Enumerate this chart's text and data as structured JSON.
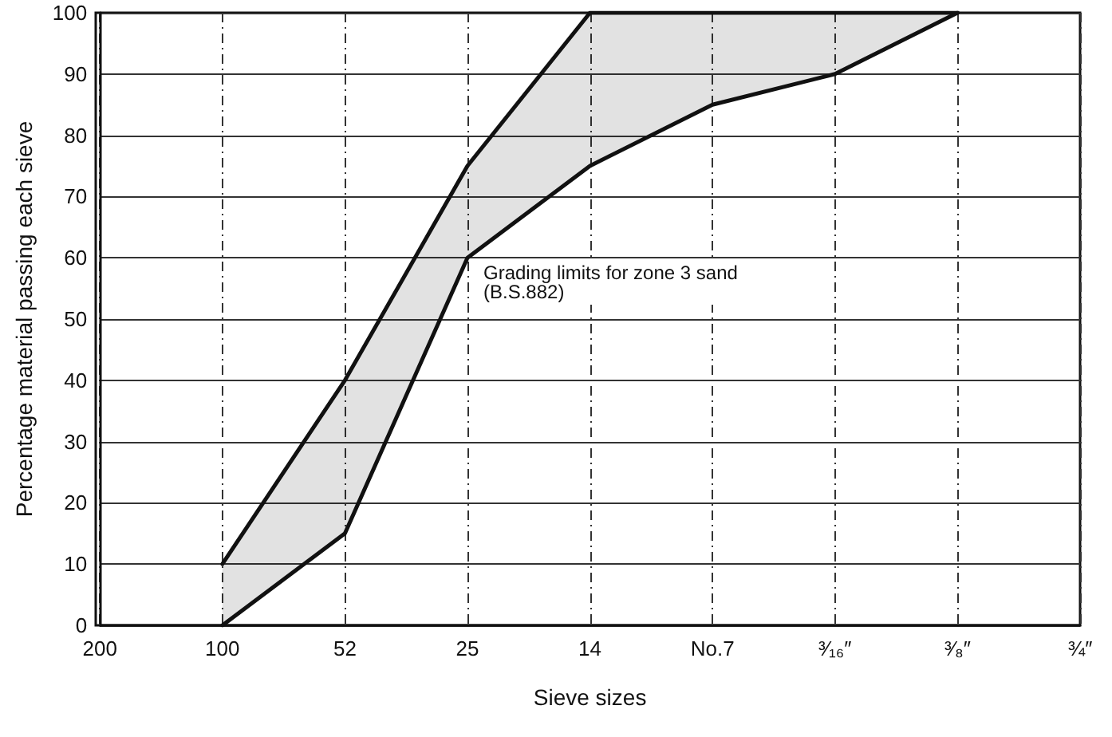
{
  "chart_data": {
    "type": "line",
    "xlabel": "Sieve sizes",
    "ylabel": "Percentage material passing each sieve",
    "categories": [
      "200",
      "100",
      "52",
      "25",
      "14",
      "No.7",
      "³⁄₁₆″",
      "³⁄₈″",
      "¾″"
    ],
    "series": [
      {
        "color": "#111111",
        "values": [
          null,
          10,
          40,
          75,
          100,
          100,
          100,
          100,
          null
        ]
      },
      {
        "color": "#111111",
        "values": [
          null,
          0,
          15,
          60,
          75,
          85,
          90,
          100,
          null
        ],
        "lower": [
          null,
          0,
          15,
          60,
          75,
          85,
          90,
          100,
          null
        ],
        "upper": [
          null,
          10,
          40,
          75,
          100,
          100,
          100,
          100,
          null
        ]
      }
    ],
    "ylim": [
      0,
      100
    ],
    "yticks": [
      0,
      10,
      20,
      30,
      40,
      50,
      60,
      70,
      80,
      90,
      100
    ],
    "grid": true,
    "marker": "none",
    "line_style": "solid",
    "annotations": [
      "Grading limits for zone 3 sand\n(B.S.882)"
    ]
  }
}
